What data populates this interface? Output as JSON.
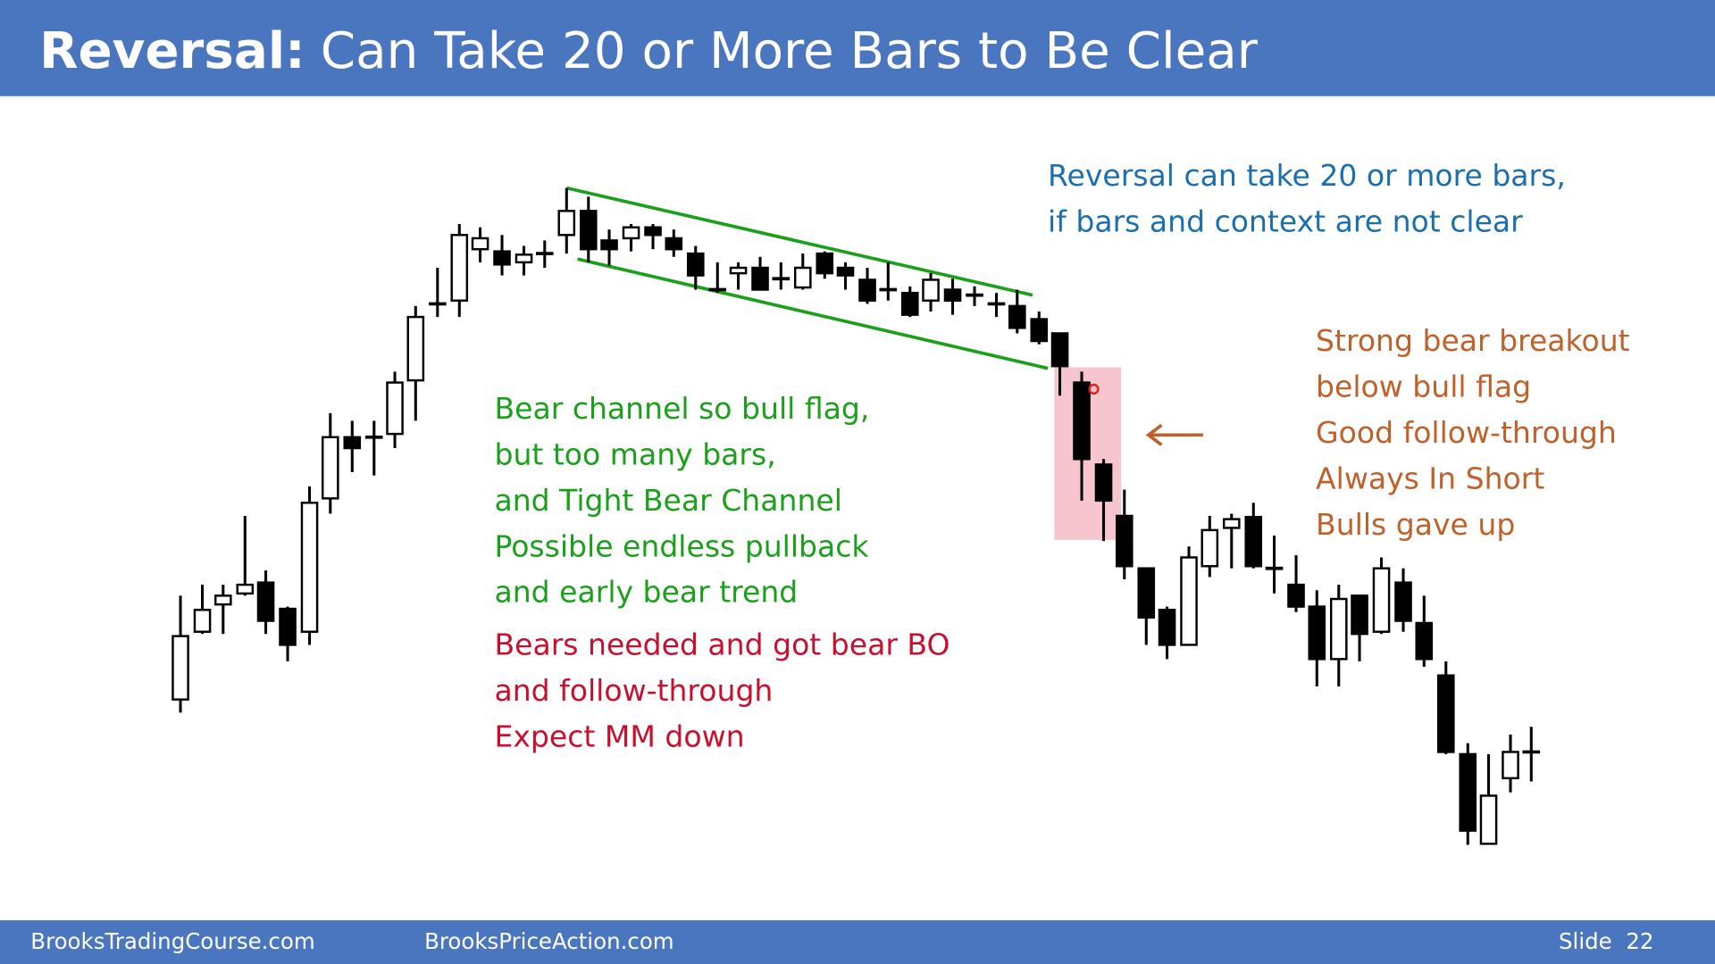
{
  "header": {
    "title_bold": "Reversal:",
    "title_rest": "Can Take 20 or More Bars to Be Clear"
  },
  "annotations": {
    "context": [
      "Reversal can take 20 or more bars,",
      "if bars and context are not clear"
    ],
    "channel": [
      "Bear channel so bull flag,",
      "but too many bars,",
      "and Tight Bear Channel",
      "Possible endless pullback",
      "and early bear trend"
    ],
    "expectation": [
      "Bears needed and got bear BO",
      "and follow-through",
      "Expect MM down"
    ],
    "breakout": [
      "Strong bear breakout",
      "below bull flag",
      "Good follow-through",
      "Always In Short",
      "Bulls gave up"
    ]
  },
  "footer": {
    "left": "BrooksTradingCourse.com",
    "center": "BrooksPriceAction.com",
    "slide": "Slide  22"
  }
}
